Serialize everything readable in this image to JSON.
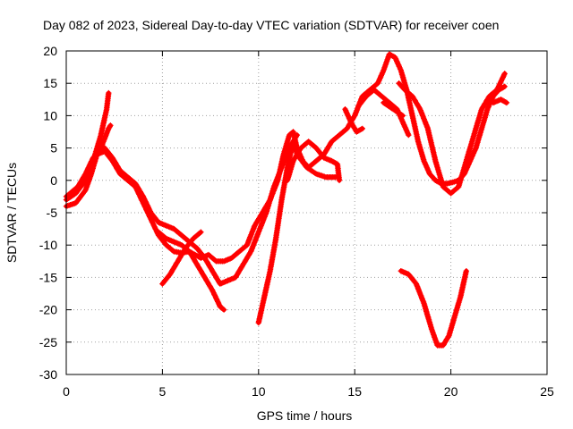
{
  "chart_data": {
    "type": "scatter",
    "title": "Day 082 of 2023, Sidereal Day-to-day VTEC variation (SDTVAR) for receiver coen",
    "xlabel": "GPS time / hours",
    "ylabel": "SDTVAR / TECUs",
    "xlim": [
      0,
      25
    ],
    "ylim": [
      -30,
      20
    ],
    "xticks": [
      0,
      5,
      10,
      15,
      20,
      25
    ],
    "yticks": [
      -30,
      -25,
      -20,
      -15,
      -10,
      -5,
      0,
      5,
      10,
      15,
      20
    ],
    "grid": true,
    "marker": "+",
    "color": "#ff0000",
    "series": [
      {
        "name": "track-1",
        "points": [
          [
            0,
            -4
          ],
          [
            0.5,
            -3.5
          ],
          [
            1,
            -1.5
          ],
          [
            1.3,
            1
          ],
          [
            1.6,
            4
          ],
          [
            2,
            4.5
          ],
          [
            2.4,
            3
          ],
          [
            2.8,
            1
          ],
          [
            3.2,
            0
          ],
          [
            3.6,
            -1
          ],
          [
            4,
            -3.5
          ],
          [
            4.4,
            -6
          ],
          [
            4.8,
            -8.5
          ],
          [
            5.2,
            -10
          ],
          [
            5.6,
            -11
          ],
          [
            6,
            -11.2
          ],
          [
            6.4,
            -11
          ],
          [
            7,
            -12
          ],
          [
            7.4,
            -11.5
          ],
          [
            7.8,
            -12.5
          ],
          [
            8.2,
            -12.5
          ],
          [
            8.6,
            -12
          ],
          [
            9,
            -11
          ],
          [
            9.4,
            -10
          ],
          [
            9.8,
            -7
          ],
          [
            10.2,
            -5
          ],
          [
            10.6,
            -3
          ],
          [
            11,
            0
          ],
          [
            11.3,
            4
          ],
          [
            11.6,
            7
          ],
          [
            11.8,
            7.5
          ],
          [
            12,
            5
          ],
          [
            12.3,
            3
          ],
          [
            12.6,
            2
          ],
          [
            13,
            3
          ],
          [
            13.4,
            4
          ],
          [
            13.8,
            6
          ],
          [
            14.2,
            7
          ],
          [
            14.6,
            8
          ],
          [
            15,
            10
          ],
          [
            15.4,
            13
          ],
          [
            15.8,
            14
          ],
          [
            16.2,
            15
          ],
          [
            16.5,
            17
          ],
          [
            16.8,
            19.5
          ],
          [
            17.1,
            19
          ],
          [
            17.4,
            17
          ],
          [
            17.7,
            14
          ],
          [
            18,
            10
          ],
          [
            18.3,
            6
          ],
          [
            18.6,
            3
          ],
          [
            18.9,
            1
          ],
          [
            19.2,
            0
          ],
          [
            19.5,
            -0.5
          ],
          [
            19.8,
            -0.5
          ],
          [
            20.1,
            -0.3
          ],
          [
            20.4,
            0
          ],
          [
            20.7,
            1
          ],
          [
            21,
            3
          ],
          [
            21.3,
            5
          ],
          [
            21.6,
            8
          ],
          [
            21.9,
            11
          ],
          [
            22.2,
            13
          ],
          [
            22.5,
            14
          ],
          [
            22.8,
            14.5
          ]
        ]
      },
      {
        "name": "track-2",
        "points": [
          [
            0,
            -3
          ],
          [
            0.5,
            -2
          ],
          [
            1,
            0
          ],
          [
            1.3,
            2.5
          ],
          [
            1.6,
            4.5
          ],
          [
            2,
            5
          ],
          [
            2.4,
            3.5
          ],
          [
            2.8,
            1.5
          ],
          [
            3.2,
            0.5
          ],
          [
            3.6,
            -0.5
          ],
          [
            4,
            -2.5
          ],
          [
            4.4,
            -5
          ],
          [
            4.8,
            -6.5
          ],
          [
            5.2,
            -7
          ],
          [
            5.6,
            -7.5
          ],
          [
            6,
            -8.5
          ],
          [
            6.4,
            -9.5
          ],
          [
            6.8,
            -10.5
          ],
          [
            7.2,
            -12
          ],
          [
            7.6,
            -14
          ],
          [
            8,
            -16
          ],
          [
            8.4,
            -15.5
          ],
          [
            8.8,
            -15
          ],
          [
            9.2,
            -13
          ],
          [
            9.6,
            -11
          ],
          [
            10,
            -8
          ],
          [
            10.4,
            -5
          ],
          [
            10.8,
            -1
          ],
          [
            11.2,
            2
          ],
          [
            11.6,
            5
          ],
          [
            11.8,
            6
          ],
          [
            12,
            4
          ],
          [
            12.5,
            2
          ],
          [
            13,
            1
          ],
          [
            13.5,
            0.5
          ],
          [
            14,
            0.5
          ]
        ]
      },
      {
        "name": "track-3",
        "points": [
          [
            0,
            -2.5
          ],
          [
            0.6,
            -1
          ],
          [
            1,
            1
          ],
          [
            1.4,
            3.5
          ],
          [
            1.8,
            5
          ],
          [
            2.2,
            8
          ],
          [
            2.3,
            8.5
          ]
        ]
      },
      {
        "name": "track-4",
        "points": [
          [
            1.5,
            4
          ],
          [
            1.8,
            7
          ],
          [
            2.1,
            11
          ],
          [
            2.2,
            13.5
          ]
        ]
      },
      {
        "name": "track-5",
        "points": [
          [
            4.8,
            -8
          ],
          [
            5.2,
            -9
          ],
          [
            5.6,
            -9.5
          ],
          [
            6,
            -10
          ],
          [
            6.4,
            -11
          ],
          [
            6.8,
            -13
          ],
          [
            7.2,
            -15
          ],
          [
            7.6,
            -17
          ],
          [
            8,
            -19.5
          ],
          [
            8.2,
            -20
          ]
        ]
      },
      {
        "name": "track-6",
        "points": [
          [
            5,
            -16
          ],
          [
            5.4,
            -14.5
          ],
          [
            5.8,
            -12.5
          ],
          [
            6.2,
            -10.5
          ],
          [
            6.6,
            -9
          ],
          [
            7,
            -8
          ]
        ]
      },
      {
        "name": "track-7",
        "points": [
          [
            10,
            -22
          ],
          [
            10.3,
            -18
          ],
          [
            10.6,
            -14
          ],
          [
            10.9,
            -9
          ],
          [
            11.2,
            -3
          ],
          [
            11.5,
            2
          ],
          [
            11.8,
            6
          ],
          [
            12,
            7
          ]
        ]
      },
      {
        "name": "track-8",
        "points": [
          [
            11.5,
            0
          ],
          [
            11.8,
            3
          ],
          [
            12.2,
            5
          ],
          [
            12.6,
            6
          ],
          [
            13,
            5
          ],
          [
            13.4,
            3.5
          ],
          [
            13.8,
            3
          ],
          [
            14.1,
            2.5
          ],
          [
            14.2,
            0
          ]
        ]
      },
      {
        "name": "track-9",
        "points": [
          [
            14.5,
            11
          ],
          [
            14.8,
            9
          ],
          [
            15.1,
            7.5
          ],
          [
            15.4,
            8
          ]
        ]
      },
      {
        "name": "track-10",
        "points": [
          [
            15.2,
            11.5
          ],
          [
            15.6,
            13
          ],
          [
            16,
            14
          ],
          [
            16.4,
            13
          ],
          [
            16.8,
            12
          ],
          [
            17.2,
            11
          ],
          [
            17.5,
            9
          ],
          [
            17.8,
            7
          ]
        ]
      },
      {
        "name": "track-11",
        "points": [
          [
            16.5,
            12
          ],
          [
            17,
            11
          ],
          [
            17.5,
            10
          ]
        ]
      },
      {
        "name": "track-12",
        "points": [
          [
            17.3,
            15
          ],
          [
            17.6,
            14
          ],
          [
            18,
            13
          ],
          [
            18.4,
            11
          ],
          [
            18.8,
            8
          ],
          [
            19.2,
            3
          ],
          [
            19.6,
            -1
          ],
          [
            20,
            -2
          ],
          [
            20.4,
            -1
          ],
          [
            20.8,
            3
          ],
          [
            21.2,
            7
          ],
          [
            21.6,
            11
          ],
          [
            22,
            13
          ],
          [
            22.4,
            14
          ],
          [
            22.8,
            16.5
          ]
        ]
      },
      {
        "name": "track-13",
        "points": [
          [
            22.2,
            12
          ],
          [
            22.6,
            12.5
          ],
          [
            22.9,
            12
          ]
        ]
      },
      {
        "name": "track-14",
        "points": [
          [
            17.4,
            -14
          ],
          [
            17.8,
            -14.5
          ],
          [
            18.2,
            -16
          ],
          [
            18.6,
            -19
          ],
          [
            19,
            -23
          ],
          [
            19.3,
            -25.5
          ],
          [
            19.6,
            -25.5
          ],
          [
            19.9,
            -24
          ],
          [
            20.2,
            -21
          ],
          [
            20.5,
            -18
          ],
          [
            20.8,
            -14
          ]
        ]
      }
    ]
  }
}
